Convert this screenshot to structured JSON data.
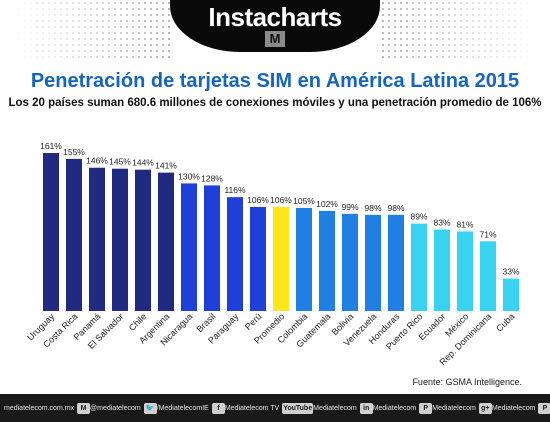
{
  "header": {
    "brand": "Instacharts",
    "logo_letter": "M"
  },
  "title": "Penetración de tarjetas SIM en América Latina 2015",
  "subtitle": "Los 20 países suman 680.6 millones de conexiones móviles y una penetración promedio de 106%",
  "source": "Fuente: GSMA Intelligence.",
  "colors": {
    "navy": "#1f2a80",
    "blue": "#1e40d8",
    "mid_blue": "#1f7fe3",
    "cyan": "#38d3f0",
    "yellow": "#ffe81a",
    "title_blue": "#1565c0"
  },
  "chart_data": {
    "type": "bar",
    "title": "Penetración de tarjetas SIM en América Latina 2015",
    "categories": [
      "Uruguay",
      "Costa Rica",
      "Panamá",
      "El Salvador",
      "Chile",
      "Argentina",
      "Nicaragua",
      "Brasil",
      "Paraguay",
      "Perú",
      "Promedio",
      "Colombia",
      "Guatemala",
      "Bolivia",
      "Venezuela",
      "Honduras",
      "Puerto Rico",
      "Ecuador",
      "México",
      "Rep. Dominicana",
      "Cuba"
    ],
    "values": [
      161,
      155,
      146,
      145,
      144,
      141,
      130,
      128,
      116,
      106,
      106,
      105,
      102,
      99,
      98,
      98,
      89,
      83,
      81,
      71,
      33
    ],
    "value_labels": [
      "161%",
      "155%",
      "146%",
      "145%",
      "144%",
      "141%",
      "130%",
      "128%",
      "116%",
      "106%",
      "106%",
      "105%",
      "102%",
      "99%",
      "98%",
      "98%",
      "89%",
      "83%",
      "81%",
      "71%",
      "33%"
    ],
    "bar_colors": [
      "#1f2a80",
      "#1f2a80",
      "#1f2a80",
      "#1f2a80",
      "#1f2a80",
      "#1f2a80",
      "#1e40d8",
      "#1e40d8",
      "#1e40d8",
      "#1e40d8",
      "#ffe81a",
      "#1f7fe3",
      "#1f7fe3",
      "#1f7fe3",
      "#1f7fe3",
      "#1f7fe3",
      "#38d3f0",
      "#38d3f0",
      "#38d3f0",
      "#38d3f0",
      "#38d3f0"
    ],
    "ylim": [
      0,
      165
    ],
    "grid": false,
    "legend": "none"
  },
  "footer": {
    "items": [
      {
        "text": "mediatelecom.com.mx",
        "icon": "M"
      },
      {
        "text": "@mediatelecom",
        "icon": "🐦"
      },
      {
        "text": "/MediatelecomIE",
        "icon": "f"
      },
      {
        "text": "Mediatelecom TV",
        "icon": "YouTube"
      },
      {
        "text": "Mediatelecom",
        "icon": "in"
      },
      {
        "text": "Mediatelecom",
        "icon": "P"
      },
      {
        "text": "Mediatelecom",
        "icon": "g+"
      },
      {
        "text": "Mediatelecom",
        "icon": "P"
      }
    ]
  }
}
